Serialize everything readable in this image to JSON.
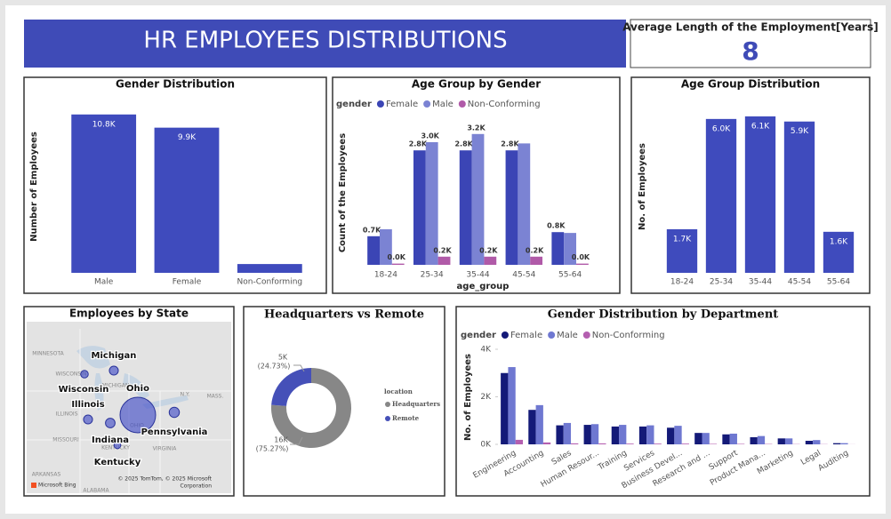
{
  "header": {
    "title": "HR EMPLOYEES DISTRIBUTIONS"
  },
  "kpi": {
    "label": "Average Length of the Employment[Years]",
    "value": 8
  },
  "chart_data": [
    {
      "type": "bar",
      "title": "Gender Distribution",
      "y_label": "Number of Employees",
      "categories": [
        "Male",
        "Female",
        "Non-Conforming"
      ],
      "values": [
        10800,
        9900,
        600
      ],
      "value_labels": [
        "10.8K",
        "9.9K",
        null
      ],
      "color": "#3f4bbd",
      "ylim": [
        0,
        12000
      ]
    },
    {
      "type": "grouped_bar",
      "title": "Age Group by Gender",
      "x_label": "age_group",
      "y_label": "Count of the Employees",
      "legend_title": "gender",
      "categories": [
        "18-24",
        "25-34",
        "35-44",
        "45-54",
        "55-64"
      ],
      "series": [
        {
          "name": "Female",
          "color": "#3b45b5",
          "values": [
            700,
            2800,
            2800,
            2800,
            800
          ],
          "value_labels": [
            "0.7K",
            "2.8K",
            "2.8K",
            "2.8K",
            "0.8K"
          ]
        },
        {
          "name": "Male",
          "color": "#7b83d3",
          "values": [
            870,
            3000,
            3200,
            2970,
            780
          ],
          "value_labels": [
            null,
            "3.0K",
            "3.2K",
            null,
            null
          ]
        },
        {
          "name": "Non-Conforming",
          "color": "#b05aa8",
          "values": [
            30,
            200,
            200,
            200,
            30
          ],
          "value_labels": [
            "0.0K",
            "0.2K",
            "0.2K",
            "0.2K",
            "0.0K"
          ]
        }
      ],
      "ylim": [
        0,
        4000
      ]
    },
    {
      "type": "bar",
      "title": "Age Group Distribution",
      "y_label": "No. of Employees",
      "categories": [
        "18-24",
        "25-34",
        "35-44",
        "45-54",
        "55-64"
      ],
      "values": [
        1700,
        6000,
        6100,
        5900,
        1600
      ],
      "value_labels": [
        "1.7K",
        "6.0K",
        "6.1K",
        "5.9K",
        "1.6K"
      ],
      "color": "#3f4bbd",
      "ylim": [
        0,
        7000
      ]
    },
    {
      "type": "bubble_map",
      "title": "Employees by State",
      "categories": [
        "Michigan",
        "Wisconsin",
        "Ohio",
        "Illinois",
        "Pennsylvania",
        "Indiana",
        "Kentucky"
      ],
      "values": [
        700,
        500,
        11000,
        700,
        900,
        800,
        400
      ],
      "color": "#4550c8",
      "map_labels": [
        "MINNESOTA",
        "WISCONSIN",
        "MICHIGAN",
        "ILLINOIS",
        "OHIO",
        "MISSOURI",
        "KENTUCKY",
        "VIRGINIA",
        "ARKANSAS",
        "ALABAMA",
        "N.Y.",
        "MASS."
      ],
      "attribution": [
        "© 2025 TomTom, © 2025 Microsoft",
        "Corporation"
      ],
      "logo": "Microsoft Bing"
    },
    {
      "type": "donut",
      "title": "Headquarters vs Remote",
      "legend_title": "location",
      "categories": [
        "Headquarters",
        "Remote"
      ],
      "values": [
        16000,
        5000
      ],
      "value_labels": [
        "16K",
        "5K"
      ],
      "percent_labels": [
        "(75.27%)",
        "(24.73%)"
      ],
      "colors": [
        "#878787",
        "#4550b8"
      ]
    },
    {
      "type": "grouped_bar",
      "title": "Gender Distribution by Department",
      "y_label": "No. of Employees",
      "legend_title": "gender",
      "categories": [
        "Engineering",
        "Accounting",
        "Sales",
        "Human Resour...",
        "Training",
        "Services",
        "Business Devel...",
        "Research and ...",
        "Support",
        "Product Mana...",
        "Marketing",
        "Legal",
        "Auditing"
      ],
      "series": [
        {
          "name": "Female",
          "color": "#141a78",
          "values": [
            3000,
            1450,
            800,
            820,
            750,
            750,
            700,
            480,
            420,
            300,
            250,
            150,
            50
          ]
        },
        {
          "name": "Male",
          "color": "#6f78d1",
          "values": [
            3250,
            1650,
            900,
            850,
            820,
            800,
            780,
            480,
            450,
            350,
            250,
            180,
            50
          ]
        },
        {
          "name": "Non-Conforming",
          "color": "#b45fb0",
          "values": [
            190,
            80,
            40,
            40,
            30,
            30,
            30,
            20,
            20,
            15,
            10,
            8,
            3
          ]
        }
      ],
      "ylim": [
        0,
        4000
      ],
      "yticks": [
        {
          "value": 0,
          "label": "0K"
        },
        {
          "value": 2000,
          "label": "2K"
        },
        {
          "value": 4000,
          "label": "4K"
        }
      ]
    }
  ]
}
